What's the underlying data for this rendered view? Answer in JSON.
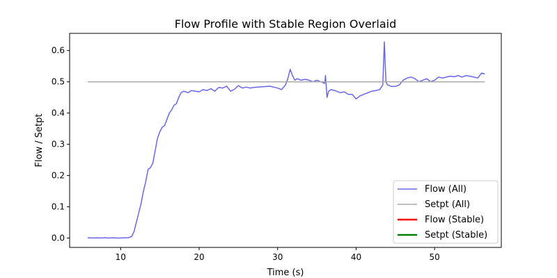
{
  "chart_data": {
    "type": "line",
    "title": "Flow Profile with Stable Region Overlaid",
    "xlabel": "Time (s)",
    "ylabel": "Flow / Setpt",
    "xlim": [
      3.5,
      58.5
    ],
    "ylim": [
      -0.03,
      0.655
    ],
    "x_ticks": [
      10,
      20,
      30,
      40,
      50
    ],
    "y_ticks": [
      0.0,
      0.1,
      0.2,
      0.3,
      0.4,
      0.5,
      0.6
    ],
    "x_tick_labels": [
      "10",
      "20",
      "30",
      "40",
      "50"
    ],
    "y_tick_labels": [
      "0.0",
      "0.1",
      "0.2",
      "0.3",
      "0.4",
      "0.5",
      "0.6"
    ],
    "grid": false,
    "legend_position": "lower-right",
    "series": [
      {
        "name": "Flow (All)",
        "color": "#6666ee",
        "x": [
          5.8,
          6.5,
          7.0,
          7.5,
          8.0,
          8.5,
          9.0,
          9.5,
          10.0,
          10.5,
          11.0,
          11.4,
          11.7,
          12.0,
          12.3,
          12.6,
          12.9,
          13.2,
          13.5,
          13.8,
          14.1,
          14.4,
          14.7,
          15.0,
          15.3,
          15.6,
          15.9,
          16.2,
          16.5,
          16.8,
          17.1,
          17.4,
          17.7,
          18.0,
          18.3,
          18.6,
          19.0,
          19.5,
          20.0,
          20.5,
          21.0,
          21.5,
          22.0,
          22.5,
          23.0,
          23.5,
          24.0,
          24.5,
          25.0,
          25.5,
          26.0,
          26.5,
          27.0,
          28.0,
          29.0,
          30.0,
          30.5,
          31.0,
          31.3,
          31.6,
          31.9,
          32.2,
          32.5,
          33.0,
          33.5,
          34.0,
          34.5,
          35.0,
          35.5,
          36.0,
          36.1,
          36.3,
          36.5,
          36.8,
          37.5,
          38.0,
          38.5,
          39.0,
          39.5,
          40.0,
          40.5,
          41.0,
          41.5,
          42.0,
          42.5,
          43.0,
          43.4,
          43.6,
          43.8,
          44.0,
          44.5,
          45.0,
          45.5,
          46.0,
          46.5,
          47.0,
          47.5,
          48.0,
          48.5,
          49.0,
          49.5,
          50.0,
          50.5,
          51.0,
          51.5,
          52.0,
          52.5,
          53.0,
          53.5,
          54.0,
          54.5,
          55.0,
          55.5,
          56.0,
          56.4
        ],
        "y": [
          0.001,
          0.0,
          0.001,
          0.0,
          0.001,
          0.0,
          0.001,
          0.0,
          0.0,
          0.001,
          0.001,
          0.005,
          0.02,
          0.05,
          0.08,
          0.11,
          0.15,
          0.18,
          0.22,
          0.225,
          0.24,
          0.28,
          0.32,
          0.34,
          0.355,
          0.36,
          0.38,
          0.4,
          0.41,
          0.425,
          0.43,
          0.45,
          0.465,
          0.47,
          0.468,
          0.465,
          0.472,
          0.47,
          0.468,
          0.475,
          0.472,
          0.478,
          0.47,
          0.482,
          0.48,
          0.486,
          0.47,
          0.476,
          0.488,
          0.48,
          0.483,
          0.48,
          0.482,
          0.484,
          0.486,
          0.48,
          0.475,
          0.49,
          0.51,
          0.54,
          0.52,
          0.505,
          0.51,
          0.505,
          0.508,
          0.505,
          0.5,
          0.505,
          0.5,
          0.495,
          0.52,
          0.45,
          0.47,
          0.475,
          0.47,
          0.465,
          0.468,
          0.46,
          0.46,
          0.445,
          0.455,
          0.46,
          0.465,
          0.47,
          0.472,
          0.475,
          0.49,
          0.628,
          0.5,
          0.49,
          0.485,
          0.485,
          0.49,
          0.505,
          0.512,
          0.515,
          0.51,
          0.5,
          0.505,
          0.51,
          0.5,
          0.505,
          0.515,
          0.512,
          0.515,
          0.518,
          0.516,
          0.52,
          0.515,
          0.52,
          0.518,
          0.515,
          0.512,
          0.528,
          0.525
        ]
      },
      {
        "name": "Setpt (All)",
        "color": "#aaaaaa",
        "x": [
          5.8,
          56.4
        ],
        "y": [
          0.5,
          0.5
        ]
      },
      {
        "name": "Flow (Stable)",
        "color": "#ff0000",
        "x": [],
        "y": []
      },
      {
        "name": "Setpt (Stable)",
        "color": "#008000",
        "x": [],
        "y": []
      }
    ]
  }
}
